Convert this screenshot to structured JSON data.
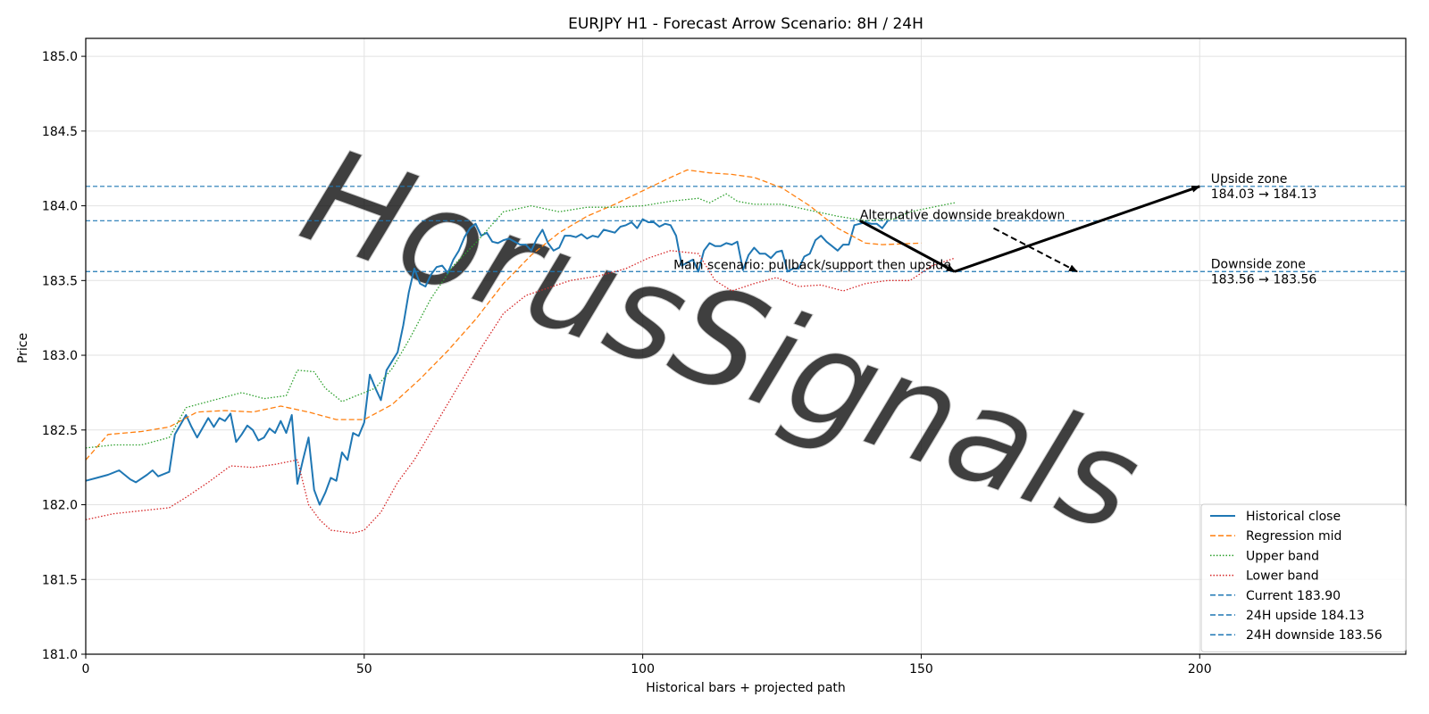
{
  "chart_data": {
    "type": "line",
    "title": "EURJPY H1 - Forecast Arrow Scenario: 8H / 24H",
    "xlabel": "Historical bars + projected path",
    "ylabel": "Price",
    "xlim": [
      0,
      237
    ],
    "ylim": [
      181.0,
      185.12
    ],
    "xticks": [
      0,
      50,
      100,
      150,
      200
    ],
    "yticks": [
      181.0,
      181.5,
      182.0,
      182.5,
      183.0,
      183.5,
      184.0,
      184.5,
      185.0
    ],
    "grid": true,
    "legend_position": "lower-right",
    "watermark": "HorusSignals",
    "series": [
      {
        "name": "Historical close",
        "color": "#1f77b4",
        "style": "solid",
        "points": [
          [
            0,
            182.16
          ],
          [
            2,
            182.18
          ],
          [
            4,
            182.2
          ],
          [
            6,
            182.23
          ],
          [
            8,
            182.17
          ],
          [
            9,
            182.15
          ],
          [
            11,
            182.2
          ],
          [
            12,
            182.23
          ],
          [
            13,
            182.19
          ],
          [
            15,
            182.22
          ],
          [
            16,
            182.47
          ],
          [
            18,
            182.6
          ],
          [
            19,
            182.52
          ],
          [
            20,
            182.45
          ],
          [
            22,
            182.58
          ],
          [
            23,
            182.52
          ],
          [
            24,
            182.58
          ],
          [
            25,
            182.56
          ],
          [
            26,
            182.61
          ],
          [
            27,
            182.42
          ],
          [
            28,
            182.47
          ],
          [
            29,
            182.53
          ],
          [
            30,
            182.5
          ],
          [
            31,
            182.43
          ],
          [
            32,
            182.45
          ],
          [
            33,
            182.51
          ],
          [
            34,
            182.48
          ],
          [
            35,
            182.56
          ],
          [
            36,
            182.48
          ],
          [
            37,
            182.6
          ],
          [
            38,
            182.14
          ],
          [
            39,
            182.3
          ],
          [
            40,
            182.45
          ],
          [
            41,
            182.1
          ],
          [
            42,
            182.0
          ],
          [
            43,
            182.08
          ],
          [
            44,
            182.18
          ],
          [
            45,
            182.16
          ],
          [
            46,
            182.35
          ],
          [
            47,
            182.3
          ],
          [
            48,
            182.48
          ],
          [
            49,
            182.46
          ],
          [
            50,
            182.55
          ],
          [
            51,
            182.87
          ],
          [
            52,
            182.78
          ],
          [
            53,
            182.7
          ],
          [
            54,
            182.9
          ],
          [
            56,
            183.02
          ],
          [
            57,
            183.2
          ],
          [
            58,
            183.42
          ],
          [
            59,
            183.58
          ],
          [
            60,
            183.48
          ],
          [
            61,
            183.46
          ],
          [
            62,
            183.54
          ],
          [
            63,
            183.59
          ],
          [
            64,
            183.6
          ],
          [
            65,
            183.55
          ],
          [
            66,
            183.64
          ],
          [
            67,
            183.7
          ],
          [
            68,
            183.79
          ],
          [
            69,
            183.85
          ],
          [
            70,
            183.88
          ],
          [
            71,
            183.8
          ],
          [
            72,
            183.82
          ],
          [
            73,
            183.76
          ],
          [
            74,
            183.75
          ],
          [
            75,
            183.77
          ],
          [
            76,
            183.78
          ],
          [
            77,
            183.76
          ],
          [
            78,
            183.74
          ],
          [
            79,
            183.74
          ],
          [
            80,
            183.7
          ],
          [
            81,
            183.78
          ],
          [
            82,
            183.84
          ],
          [
            83,
            183.75
          ],
          [
            84,
            183.7
          ],
          [
            85,
            183.72
          ],
          [
            86,
            183.8
          ],
          [
            87,
            183.8
          ],
          [
            88,
            183.79
          ],
          [
            89,
            183.81
          ],
          [
            90,
            183.78
          ],
          [
            91,
            183.8
          ],
          [
            92,
            183.79
          ],
          [
            93,
            183.84
          ],
          [
            94,
            183.83
          ],
          [
            95,
            183.82
          ],
          [
            96,
            183.86
          ],
          [
            97,
            183.87
          ],
          [
            98,
            183.89
          ],
          [
            99,
            183.85
          ],
          [
            100,
            183.91
          ],
          [
            101,
            183.89
          ],
          [
            102,
            183.89
          ],
          [
            103,
            183.86
          ],
          [
            104,
            183.88
          ],
          [
            105,
            183.87
          ],
          [
            106,
            183.8
          ],
          [
            107,
            183.6
          ],
          [
            108,
            183.62
          ],
          [
            109,
            183.64
          ],
          [
            110,
            183.56
          ],
          [
            111,
            183.7
          ],
          [
            112,
            183.75
          ],
          [
            113,
            183.73
          ],
          [
            114,
            183.73
          ],
          [
            115,
            183.75
          ],
          [
            116,
            183.74
          ],
          [
            117,
            183.76
          ],
          [
            118,
            183.57
          ],
          [
            119,
            183.67
          ],
          [
            120,
            183.72
          ],
          [
            121,
            183.68
          ],
          [
            122,
            183.68
          ],
          [
            123,
            183.65
          ],
          [
            124,
            183.69
          ],
          [
            125,
            183.7
          ],
          [
            126,
            183.56
          ],
          [
            127,
            183.58
          ],
          [
            128,
            183.58
          ],
          [
            129,
            183.66
          ],
          [
            130,
            183.68
          ],
          [
            131,
            183.77
          ],
          [
            132,
            183.8
          ],
          [
            133,
            183.76
          ],
          [
            134,
            183.73
          ],
          [
            135,
            183.7
          ],
          [
            136,
            183.74
          ],
          [
            137,
            183.74
          ],
          [
            138,
            183.87
          ],
          [
            139,
            183.88
          ],
          [
            140,
            183.89
          ],
          [
            141,
            183.88
          ],
          [
            142,
            183.88
          ],
          [
            143,
            183.85
          ],
          [
            144,
            183.9
          ]
        ]
      },
      {
        "name": "Regression mid",
        "color": "#ff7f0e",
        "style": "dashed",
        "points": [
          [
            0,
            182.3
          ],
          [
            4,
            182.47
          ],
          [
            10,
            182.49
          ],
          [
            15,
            182.52
          ],
          [
            20,
            182.62
          ],
          [
            25,
            182.63
          ],
          [
            30,
            182.62
          ],
          [
            35,
            182.66
          ],
          [
            40,
            182.62
          ],
          [
            45,
            182.57
          ],
          [
            50,
            182.57
          ],
          [
            55,
            182.67
          ],
          [
            60,
            182.84
          ],
          [
            65,
            183.03
          ],
          [
            70,
            183.24
          ],
          [
            75,
            183.48
          ],
          [
            80,
            183.67
          ],
          [
            85,
            183.82
          ],
          [
            90,
            183.93
          ],
          [
            95,
            184.01
          ],
          [
            100,
            184.1
          ],
          [
            105,
            184.19
          ],
          [
            108,
            184.24
          ],
          [
            112,
            184.22
          ],
          [
            116,
            184.21
          ],
          [
            120,
            184.19
          ],
          [
            125,
            184.12
          ],
          [
            130,
            184.0
          ],
          [
            135,
            183.85
          ],
          [
            140,
            183.75
          ],
          [
            143,
            183.74
          ],
          [
            150,
            183.75
          ]
        ]
      },
      {
        "name": "Upper band",
        "color": "#2ca02c",
        "style": "dotted",
        "points": [
          [
            0,
            182.38
          ],
          [
            5,
            182.4
          ],
          [
            10,
            182.4
          ],
          [
            15,
            182.45
          ],
          [
            18,
            182.65
          ],
          [
            20,
            182.67
          ],
          [
            24,
            182.71
          ],
          [
            28,
            182.75
          ],
          [
            32,
            182.71
          ],
          [
            36,
            182.73
          ],
          [
            38,
            182.9
          ],
          [
            41,
            182.89
          ],
          [
            43,
            182.78
          ],
          [
            46,
            182.69
          ],
          [
            48,
            182.72
          ],
          [
            52,
            182.78
          ],
          [
            55,
            182.91
          ],
          [
            58,
            183.1
          ],
          [
            62,
            183.38
          ],
          [
            66,
            183.6
          ],
          [
            70,
            183.75
          ],
          [
            75,
            183.96
          ],
          [
            80,
            184.0
          ],
          [
            85,
            183.96
          ],
          [
            90,
            183.99
          ],
          [
            95,
            183.99
          ],
          [
            100,
            184.0
          ],
          [
            105,
            184.03
          ],
          [
            110,
            184.05
          ],
          [
            112,
            184.02
          ],
          [
            115,
            184.08
          ],
          [
            117,
            184.03
          ],
          [
            120,
            184.01
          ],
          [
            125,
            184.01
          ],
          [
            130,
            183.97
          ],
          [
            135,
            183.93
          ],
          [
            140,
            183.9
          ],
          [
            145,
            183.91
          ],
          [
            148,
            183.96
          ],
          [
            152,
            183.99
          ],
          [
            156,
            184.02
          ]
        ]
      },
      {
        "name": "Lower band",
        "color": "#d62728",
        "style": "dotted",
        "points": [
          [
            0,
            181.9
          ],
          [
            5,
            181.94
          ],
          [
            10,
            181.96
          ],
          [
            15,
            181.98
          ],
          [
            18,
            182.05
          ],
          [
            22,
            182.15
          ],
          [
            26,
            182.26
          ],
          [
            30,
            182.25
          ],
          [
            34,
            182.27
          ],
          [
            38,
            182.3
          ],
          [
            40,
            182.0
          ],
          [
            42,
            181.9
          ],
          [
            44,
            181.83
          ],
          [
            48,
            181.81
          ],
          [
            50,
            181.83
          ],
          [
            53,
            181.95
          ],
          [
            56,
            182.15
          ],
          [
            59,
            182.3
          ],
          [
            63,
            182.55
          ],
          [
            67,
            182.8
          ],
          [
            71,
            183.05
          ],
          [
            75,
            183.28
          ],
          [
            79,
            183.4
          ],
          [
            83,
            183.45
          ],
          [
            87,
            183.5
          ],
          [
            92,
            183.53
          ],
          [
            97,
            183.58
          ],
          [
            101,
            183.65
          ],
          [
            105,
            183.7
          ],
          [
            110,
            183.68
          ],
          [
            113,
            183.5
          ],
          [
            116,
            183.43
          ],
          [
            120,
            183.48
          ],
          [
            124,
            183.52
          ],
          [
            128,
            183.46
          ],
          [
            132,
            183.47
          ],
          [
            136,
            183.43
          ],
          [
            140,
            183.48
          ],
          [
            144,
            183.5
          ],
          [
            148,
            183.5
          ],
          [
            152,
            183.6
          ],
          [
            156,
            183.65
          ]
        ]
      }
    ],
    "hlines": [
      {
        "name": "Current 183.90",
        "value": 183.9,
        "color": "#1f77b4"
      },
      {
        "name": "24H upside 184.13",
        "value": 184.13,
        "color": "#1f77b4"
      },
      {
        "name": "24H downside 183.56",
        "value": 183.56,
        "color": "#1f77b4"
      }
    ],
    "arrows": [
      {
        "label": "Main scenario: pullback/support then upside",
        "segments": [
          [
            [
              139,
              183.9
            ],
            [
              156,
              183.56
            ]
          ],
          [
            [
              156,
              183.56
            ],
            [
              200,
              184.13
            ]
          ]
        ],
        "style": "solid"
      },
      {
        "label": "Alternative downside breakdown",
        "segments": [
          [
            [
              163,
              183.85
            ],
            [
              178,
              183.56
            ]
          ]
        ],
        "style": "dashed"
      }
    ],
    "annotations": [
      {
        "x": 202,
        "y": 184.13,
        "lines": [
          "Upside zone",
          "184.03 → 184.13"
        ]
      },
      {
        "x": 202,
        "y": 183.56,
        "lines": [
          "Downside zone",
          "183.56 → 183.56"
        ]
      }
    ]
  }
}
